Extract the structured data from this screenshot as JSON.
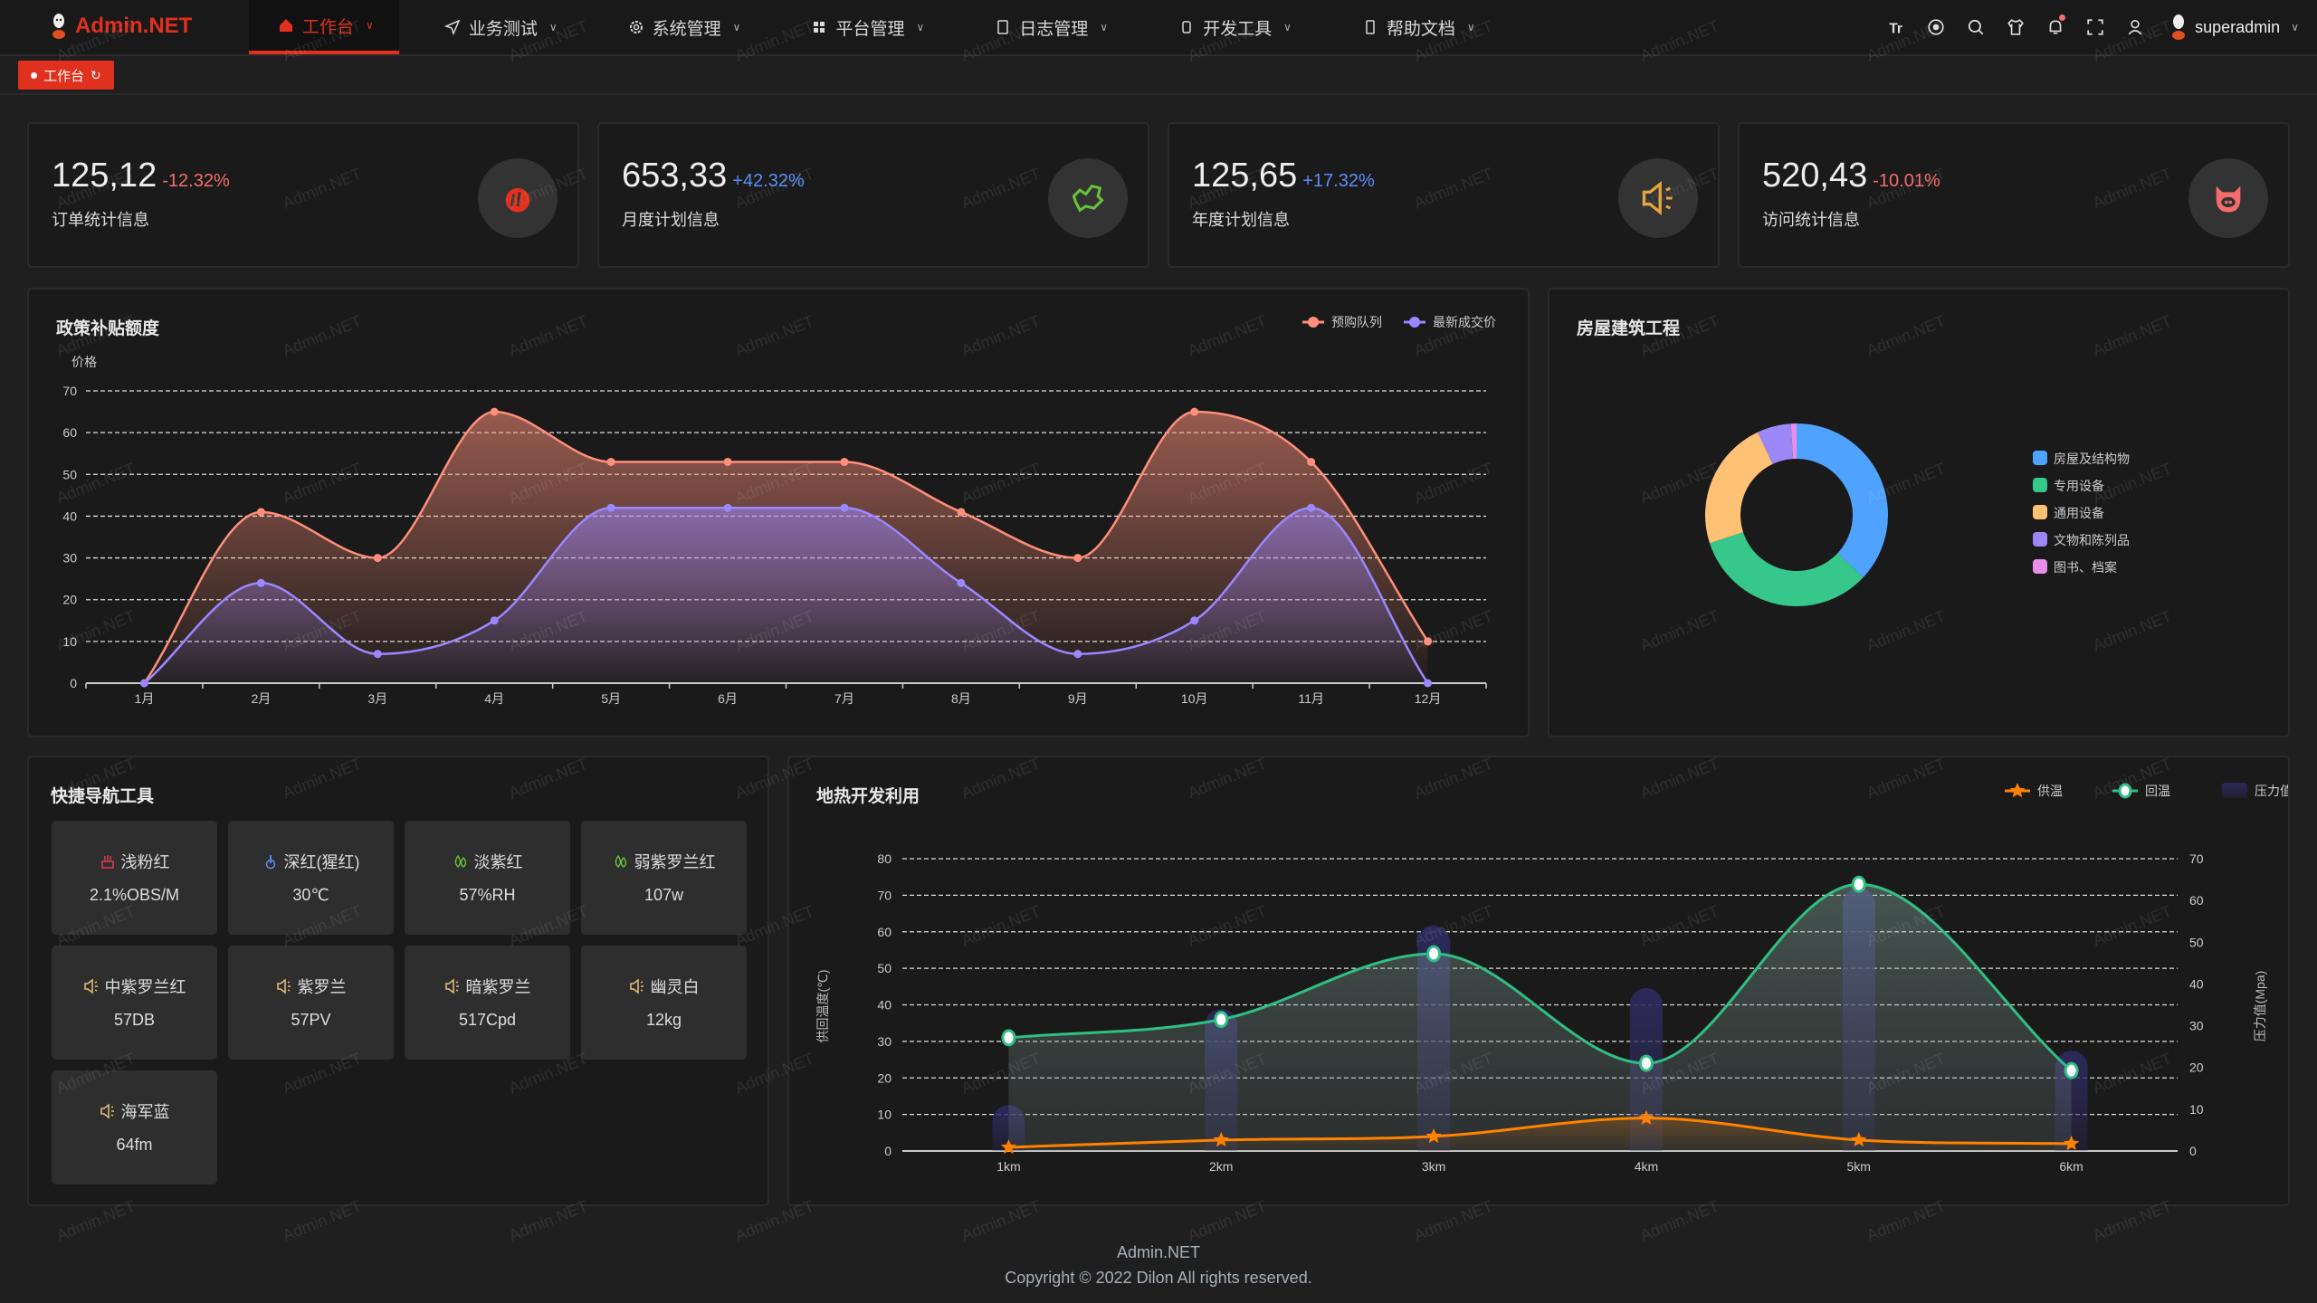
{
  "header": {
    "logo": "Admin.NET",
    "nav": [
      {
        "label": "工作台",
        "icon": "home-icon",
        "active": true
      },
      {
        "label": "业务测试",
        "icon": "send-icon"
      },
      {
        "label": "系统管理",
        "icon": "gear-icon"
      },
      {
        "label": "平台管理",
        "icon": "grid-icon"
      },
      {
        "label": "日志管理",
        "icon": "document-icon"
      },
      {
        "label": "开发工具",
        "icon": "chip-icon"
      },
      {
        "label": "帮助文档",
        "icon": "phone-icon"
      }
    ],
    "tools": [
      "font-size-icon",
      "language-icon",
      "search-icon",
      "theme-shirt-icon",
      "bell-icon",
      "fullscreen-icon",
      "user-icon"
    ],
    "username": "superadmin"
  },
  "tags": [
    {
      "label": "工作台",
      "icon": "refresh-icon"
    }
  ],
  "colors": {
    "accent": "#e0301e",
    "up": "#5b8ff9",
    "down": "#f56c6c"
  },
  "stats": [
    {
      "value": "125,12",
      "change": "-12.32%",
      "trend": "down",
      "label": "订单统计信息",
      "icon": "fire-icon",
      "icon_color": "#e0301e"
    },
    {
      "value": "653,33",
      "change": "+42.32%",
      "trend": "up",
      "label": "月度计划信息",
      "icon": "china-map-icon",
      "icon_color": "#67c23a"
    },
    {
      "value": "125,65",
      "change": "+17.32%",
      "trend": "up",
      "label": "年度计划信息",
      "icon": "speaker-icon",
      "icon_color": "#e6a23c"
    },
    {
      "value": "520,43",
      "change": "-10.01%",
      "trend": "down",
      "label": "访问统计信息",
      "icon": "pig-icon",
      "icon_color": "#f56c6c"
    }
  ],
  "quick_nav": {
    "title": "快捷导航工具",
    "items": [
      {
        "label": "浅粉红",
        "value": "2.1%OBS/M",
        "icon": "cake-icon",
        "icon_color": "#e03c4b"
      },
      {
        "label": "深红(猩红)",
        "value": "30℃",
        "icon": "thermometer-icon",
        "icon_color": "#5b8ff9"
      },
      {
        "label": "淡紫红",
        "value": "57%RH",
        "icon": "water-drop-icon",
        "icon_color": "#67c23a"
      },
      {
        "label": "弱紫罗兰红",
        "value": "107w",
        "icon": "water-drop-icon",
        "icon_color": "#67c23a"
      },
      {
        "label": "中紫罗兰红",
        "value": "57DB",
        "icon": "speaker-icon",
        "icon_color": "#e6c07b"
      },
      {
        "label": "紫罗兰",
        "value": "57PV",
        "icon": "speaker-icon",
        "icon_color": "#e6c07b"
      },
      {
        "label": "暗紫罗兰",
        "value": "517Cpd",
        "icon": "speaker-icon",
        "icon_color": "#e6c07b"
      },
      {
        "label": "幽灵白",
        "value": "12kg",
        "icon": "speaker-icon",
        "icon_color": "#e6c07b"
      },
      {
        "label": "海军蓝",
        "value": "64fm",
        "icon": "speaker-icon",
        "icon_color": "#e6c07b"
      }
    ]
  },
  "chart_data": [
    {
      "type": "area",
      "title": "政策补贴额度",
      "ylabel": "价格",
      "categories": [
        "1月",
        "2月",
        "3月",
        "4月",
        "5月",
        "6月",
        "7月",
        "8月",
        "9月",
        "10月",
        "11月",
        "12月"
      ],
      "ylim": [
        0,
        70
      ],
      "yticks": [
        0,
        10,
        20,
        30,
        40,
        50,
        60,
        70
      ],
      "grid": true,
      "legend": "top-right",
      "series": [
        {
          "name": "预购队列",
          "color": "#ff8f7a",
          "values": [
            0,
            41,
            30,
            65,
            53,
            53,
            53,
            41,
            30,
            65,
            53,
            10
          ]
        },
        {
          "name": "最新成交价",
          "color": "#9b87ff",
          "values": [
            0,
            24,
            7,
            15,
            42,
            42,
            42,
            24,
            7,
            15,
            42,
            0
          ]
        }
      ]
    },
    {
      "type": "pie",
      "title": "房屋建筑工程",
      "donut": true,
      "legend": "right",
      "slices": [
        {
          "name": "房屋及结构物",
          "value": 37,
          "color": "#4fa3ff"
        },
        {
          "name": "专用设备",
          "value": 33,
          "color": "#36c78b"
        },
        {
          "name": "通用设备",
          "value": 23,
          "color": "#ffc275"
        },
        {
          "name": "文物和陈列品",
          "value": 6,
          "color": "#9b87f5"
        },
        {
          "name": "图书、档案",
          "value": 1,
          "color": "#e88ee8"
        }
      ]
    },
    {
      "type": "line",
      "title": "地热开发利用",
      "categories": [
        "1km",
        "2km",
        "3km",
        "4km",
        "5km",
        "6km"
      ],
      "ylabel": "供回温度(℃)",
      "ylabel_right": "压力值(Mpa)",
      "ylim": [
        0,
        80
      ],
      "yticks": [
        0,
        10,
        20,
        30,
        40,
        50,
        60,
        70,
        80
      ],
      "ylim_right": [
        0,
        70
      ],
      "yticks_right": [
        0,
        10,
        20,
        30,
        40,
        50,
        60,
        70
      ],
      "grid": true,
      "legend": "top-right",
      "series": [
        {
          "name": "供温",
          "kind": "line",
          "marker": "star",
          "color": "#ff8200",
          "axis": "left",
          "values": [
            1,
            3,
            4,
            9,
            3,
            2
          ]
        },
        {
          "name": "回温",
          "kind": "line",
          "marker": "circle",
          "color": "#2fbf85",
          "axis": "left",
          "values": [
            31,
            36,
            54,
            24,
            73,
            22
          ]
        },
        {
          "name": "压力值(Mpa)",
          "kind": "bar",
          "color": "#2e2a55",
          "axis": "right",
          "values": [
            11,
            34,
            54,
            39,
            63,
            24
          ]
        }
      ]
    }
  ],
  "footer": {
    "line1": "Admin.NET",
    "line2": "Copyright © 2022 Dilon All rights reserved."
  },
  "watermark": "Admin.NET"
}
